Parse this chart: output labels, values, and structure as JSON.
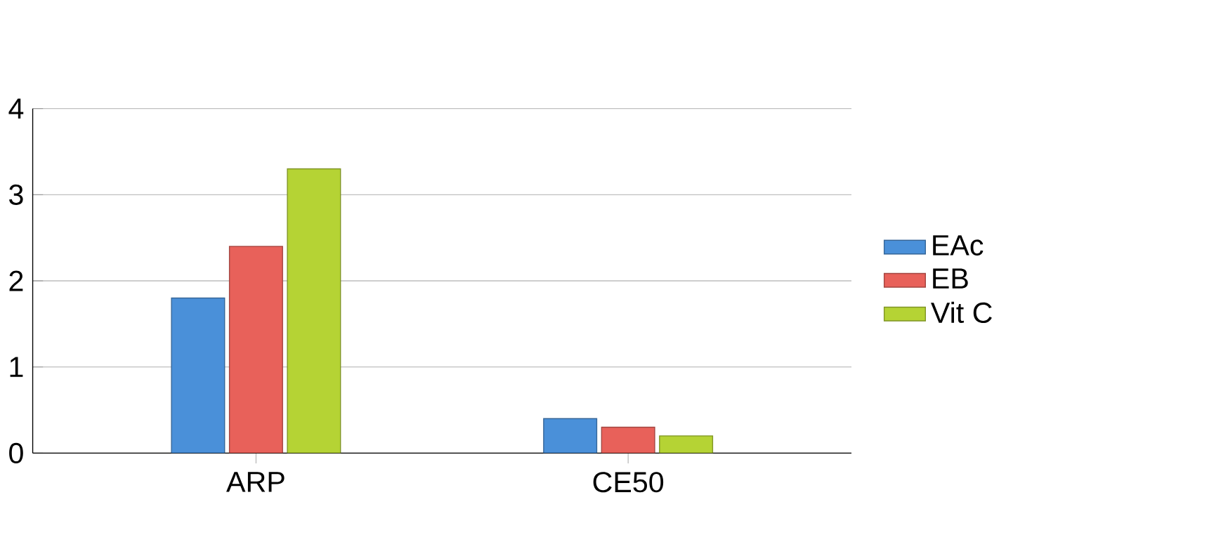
{
  "chart_data": {
    "type": "bar",
    "categories": [
      "ARP",
      "CE50"
    ],
    "series": [
      {
        "name": "EAc",
        "color": "#4a90d9",
        "values": [
          1.8,
          0.4
        ]
      },
      {
        "name": "EB",
        "color": "#e8615a",
        "values": [
          2.4,
          0.3
        ]
      },
      {
        "name": "Vit C",
        "color": "#b5d334",
        "values": [
          3.3,
          0.2
        ]
      }
    ],
    "ylim": [
      0,
      4
    ],
    "yticks": [
      0,
      1,
      2,
      3,
      4
    ],
    "grid": "y",
    "legend": "right"
  }
}
